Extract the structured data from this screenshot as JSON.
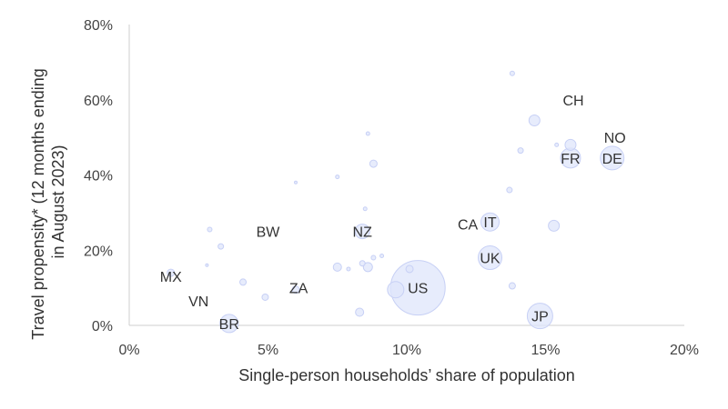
{
  "chart_data": {
    "type": "scatter",
    "title": "",
    "xlabel": "Single-person households’ share of population",
    "ylabel_lines": [
      "Travel propensity* (12 months ending",
      "in August 2023)"
    ],
    "xlim": [
      0,
      20
    ],
    "ylim": [
      0,
      80
    ],
    "x_ticks": [
      0,
      5,
      10,
      15,
      20
    ],
    "x_tick_labels": [
      "0%",
      "5%",
      "10%",
      "15%",
      "20%"
    ],
    "y_ticks": [
      0,
      20,
      40,
      60,
      80
    ],
    "y_tick_labels": [
      "0%",
      "20%",
      "40%",
      "60%",
      "80%"
    ],
    "grid": false,
    "colors": {
      "bubble_fill": "#dfe5fb",
      "bubble_stroke": "#c7d0f5",
      "axis": "#cfcfcf",
      "text": "#333333"
    },
    "labeled_points": [
      {
        "code": "CH",
        "x": 16.0,
        "y": 60.0
      },
      {
        "code": "NO",
        "x": 17.5,
        "y": 50.0
      },
      {
        "code": "FR",
        "x": 15.9,
        "y": 44.5,
        "size": 11
      },
      {
        "code": "DE",
        "x": 17.4,
        "y": 44.5,
        "size": 13
      },
      {
        "code": "BW",
        "x": 5.0,
        "y": 25.0
      },
      {
        "code": "NZ",
        "x": 8.4,
        "y": 25.0,
        "size": 8
      },
      {
        "code": "CA",
        "x": 12.2,
        "y": 27.0
      },
      {
        "code": "IT",
        "x": 13.0,
        "y": 27.5,
        "size": 10
      },
      {
        "code": "UK",
        "x": 13.0,
        "y": 18.0,
        "size": 13
      },
      {
        "code": "MX",
        "x": 1.5,
        "y": 13.0
      },
      {
        "code": "VN",
        "x": 2.5,
        "y": 6.5
      },
      {
        "code": "BR",
        "x": 3.6,
        "y": 0.5,
        "size": 10
      },
      {
        "code": "ZA",
        "x": 6.1,
        "y": 10.0
      },
      {
        "code": "US",
        "x": 10.4,
        "y": 10.0,
        "size": 30
      },
      {
        "code": "JP",
        "x": 14.8,
        "y": 2.5,
        "size": 14
      }
    ],
    "unlabeled_points": [
      {
        "x": 13.8,
        "y": 67.0,
        "size": 2.5
      },
      {
        "x": 14.6,
        "y": 54.5,
        "size": 6
      },
      {
        "x": 15.9,
        "y": 48.0,
        "size": 6
      },
      {
        "x": 15.4,
        "y": 48.0,
        "size": 2
      },
      {
        "x": 14.1,
        "y": 46.5,
        "size": 3
      },
      {
        "x": 8.6,
        "y": 51.0,
        "size": 2
      },
      {
        "x": 8.8,
        "y": 43.0,
        "size": 4
      },
      {
        "x": 7.5,
        "y": 39.5,
        "size": 2
      },
      {
        "x": 6.0,
        "y": 38.0,
        "size": 1.5
      },
      {
        "x": 13.7,
        "y": 36.0,
        "size": 3
      },
      {
        "x": 8.5,
        "y": 31.0,
        "size": 2
      },
      {
        "x": 15.3,
        "y": 26.5,
        "size": 6
      },
      {
        "x": 2.9,
        "y": 25.5,
        "size": 2.5
      },
      {
        "x": 3.3,
        "y": 21.0,
        "size": 3
      },
      {
        "x": 1.5,
        "y": 14.0,
        "size": 4
      },
      {
        "x": 2.8,
        "y": 16.0,
        "size": 1.5
      },
      {
        "x": 4.1,
        "y": 11.5,
        "size": 3.5
      },
      {
        "x": 4.9,
        "y": 7.5,
        "size": 3.5
      },
      {
        "x": 6.0,
        "y": 9.5,
        "size": 4
      },
      {
        "x": 7.5,
        "y": 15.5,
        "size": 4.5
      },
      {
        "x": 7.9,
        "y": 15.0,
        "size": 2
      },
      {
        "x": 8.4,
        "y": 16.5,
        "size": 3
      },
      {
        "x": 8.6,
        "y": 15.5,
        "size": 5
      },
      {
        "x": 8.8,
        "y": 18.0,
        "size": 2.5
      },
      {
        "x": 9.1,
        "y": 18.5,
        "size": 2
      },
      {
        "x": 10.1,
        "y": 15.0,
        "size": 4
      },
      {
        "x": 9.6,
        "y": 9.5,
        "size": 9
      },
      {
        "x": 13.8,
        "y": 10.5,
        "size": 3.5
      },
      {
        "x": 8.3,
        "y": 3.5,
        "size": 4.5
      }
    ]
  }
}
